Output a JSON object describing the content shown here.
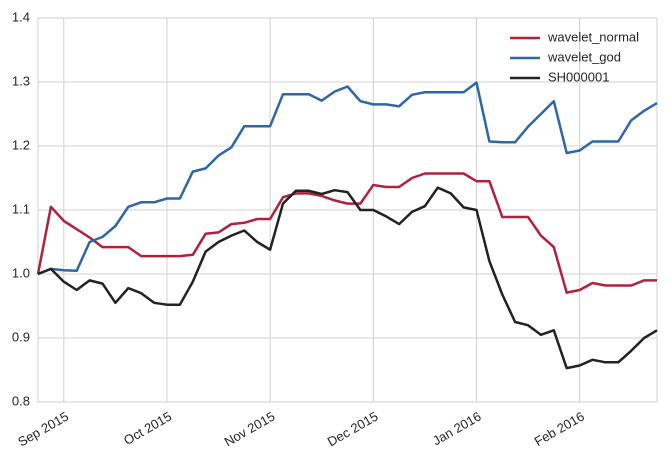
{
  "chart_data": {
    "type": "line",
    "categories": [
      null,
      null,
      "Sep 2015",
      null,
      null,
      null,
      null,
      null,
      null,
      null,
      "Oct 2015",
      null,
      null,
      null,
      null,
      null,
      null,
      null,
      "Nov 2015",
      null,
      null,
      null,
      null,
      null,
      null,
      null,
      "Dec 2015",
      null,
      null,
      null,
      null,
      null,
      null,
      null,
      "Jan 2016",
      null,
      null,
      null,
      null,
      null,
      null,
      null,
      "Feb 2016",
      null,
      null,
      null,
      null,
      null,
      null
    ],
    "series": [
      {
        "name": "wavelet_normal",
        "color": "#b2203c",
        "values": [
          1.0,
          1.105,
          1.083,
          1.07,
          1.057,
          1.042,
          1.042,
          1.042,
          1.028,
          1.028,
          1.028,
          1.028,
          1.03,
          1.063,
          1.065,
          1.078,
          1.08,
          1.086,
          1.086,
          1.12,
          1.126,
          1.126,
          1.122,
          1.115,
          1.11,
          1.11,
          1.139,
          1.136,
          1.136,
          1.15,
          1.157,
          1.157,
          1.157,
          1.157,
          1.145,
          1.145,
          1.089,
          1.089,
          1.089,
          1.06,
          1.042,
          0.971,
          0.975,
          0.986,
          0.982,
          0.982,
          0.982,
          0.99,
          0.99
        ]
      },
      {
        "name": "wavelet_god",
        "color": "#2b67a9",
        "values": [
          1.0,
          1.008,
          1.006,
          1.005,
          1.05,
          1.058,
          1.075,
          1.105,
          1.112,
          1.112,
          1.118,
          1.118,
          1.16,
          1.165,
          1.185,
          1.198,
          1.231,
          1.231,
          1.231,
          1.281,
          1.281,
          1.281,
          1.271,
          1.285,
          1.293,
          1.27,
          1.265,
          1.265,
          1.262,
          1.28,
          1.284,
          1.284,
          1.284,
          1.284,
          1.299,
          1.207,
          1.206,
          1.206,
          1.23,
          1.25,
          1.27,
          1.189,
          1.193,
          1.207,
          1.207,
          1.207,
          1.24,
          1.255,
          1.267
        ]
      },
      {
        "name": "SH000001",
        "color": "#222222",
        "values": [
          1.0,
          1.008,
          0.988,
          0.975,
          0.99,
          0.985,
          0.955,
          0.978,
          0.97,
          0.955,
          0.952,
          0.952,
          0.988,
          1.035,
          1.05,
          1.06,
          1.068,
          1.05,
          1.038,
          1.11,
          1.13,
          1.13,
          1.125,
          1.131,
          1.128,
          1.1,
          1.1,
          1.09,
          1.078,
          1.097,
          1.106,
          1.135,
          1.126,
          1.104,
          1.1,
          1.02,
          0.968,
          0.925,
          0.92,
          0.905,
          0.912,
          0.853,
          0.857,
          0.866,
          0.862,
          0.862,
          0.88,
          0.9,
          0.912
        ]
      }
    ],
    "ylim": [
      0.8,
      1.4
    ],
    "yticks": [
      0.8,
      0.9,
      {
        "value": 1,
        "label": "1.0"
      },
      1.1,
      1.2,
      1.3,
      1.4
    ],
    "grid": true,
    "legend": "upper right"
  }
}
